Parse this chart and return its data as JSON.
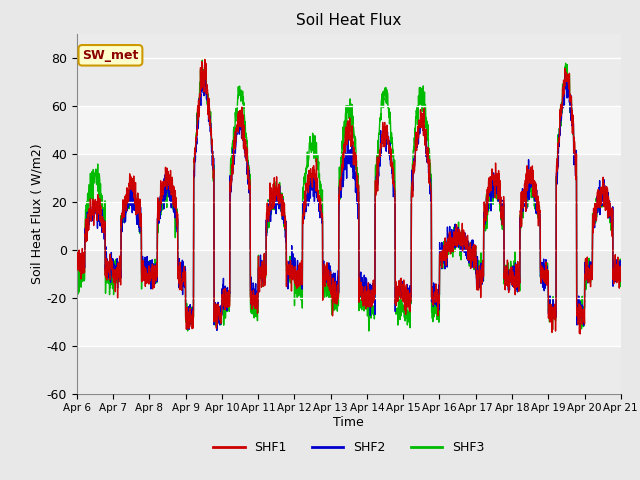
{
  "title": "Soil Heat Flux",
  "xlabel": "Time",
  "ylabel": "Soil Heat Flux ( W/m2)",
  "ylim": [
    -60,
    90
  ],
  "yticks": [
    -60,
    -40,
    -20,
    0,
    20,
    40,
    60,
    80
  ],
  "legend_label": "SW_met",
  "series_labels": [
    "SHF1",
    "SHF2",
    "SHF3"
  ],
  "series_colors": [
    "#cc0000",
    "#0000cc",
    "#00bb00"
  ],
  "x_tick_labels": [
    "Apr 6",
    "Apr 7",
    "Apr 8",
    "Apr 9",
    "Apr 10",
    "Apr 11",
    "Apr 12",
    "Apr 13",
    "Apr 14",
    "Apr 15",
    "Apr 16",
    "Apr 17",
    "Apr 18",
    "Apr 19",
    "Apr 20",
    "Apr 21"
  ],
  "background_color": "#e8e8e8",
  "plot_bg_color": "#ebebeb",
  "hspan_light_color": "#f5f5f5",
  "legend_box_color": "#ffffcc",
  "legend_box_edge": "#cc9900",
  "legend_text_color": "#8b0000"
}
